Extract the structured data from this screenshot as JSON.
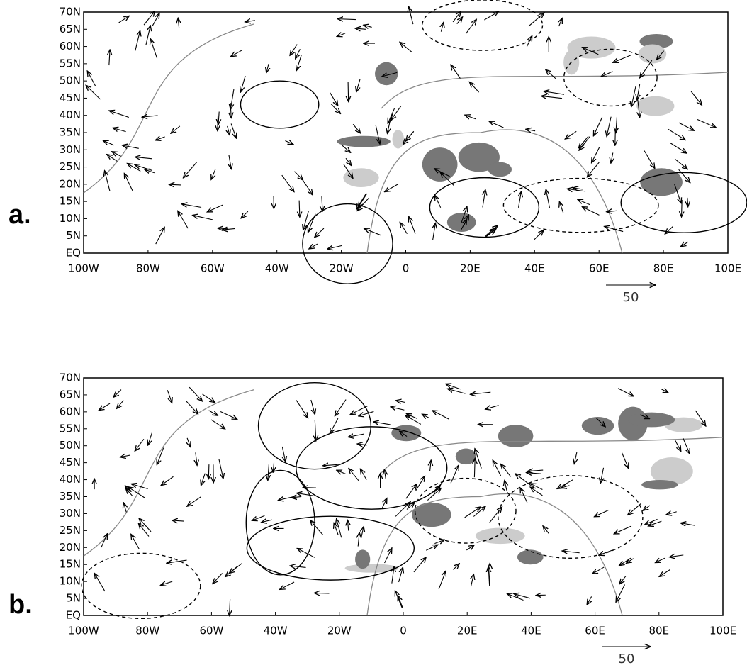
{
  "panels": [
    {
      "label": "a.",
      "lat_labels": [
        "70N",
        "65N",
        "60N",
        "55N",
        "50N",
        "45N",
        "40N",
        "35N",
        "30N",
        "25N",
        "20N",
        "15N",
        "10N",
        "5N",
        "EQ"
      ],
      "lon_labels": [
        "100W",
        "80W",
        "60W",
        "40W",
        "20W",
        "0",
        "20E",
        "40E",
        "60E",
        "80E",
        "100E"
      ],
      "reference_vector": "50"
    },
    {
      "label": "b.",
      "lat_labels": [
        "70N",
        "65N",
        "60N",
        "55N",
        "50N",
        "45N",
        "40N",
        "35N",
        "30N",
        "25N",
        "20N",
        "15N",
        "10N",
        "5N",
        "EQ"
      ],
      "lon_labels": [
        "100W",
        "80W",
        "60W",
        "40W",
        "20W",
        "0",
        "20E",
        "40E",
        "60E",
        "80E",
        "100E"
      ],
      "reference_vector": "50"
    }
  ]
}
